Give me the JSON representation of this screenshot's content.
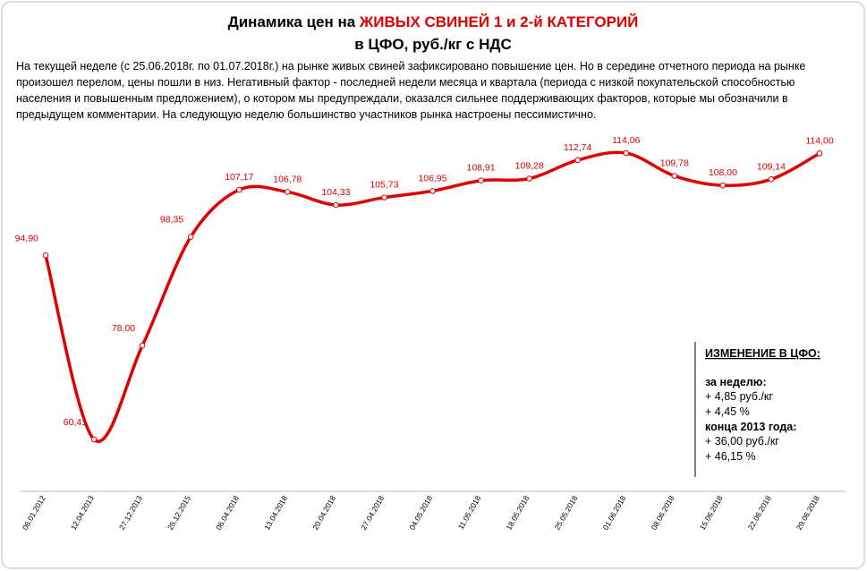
{
  "chart_data": {
    "type": "line",
    "title": {
      "lead": "Динамика цен на ",
      "highlight": "ЖИВЫХ СВИНЕЙ 1 и 2-й КАТЕГОРИЙ",
      "subtitle": "в ЦФО, руб./кг с НДС"
    },
    "comment": "На текущей неделе (с 25.06.2018г. по 01.07.2018г.) на рынке живых свиней зафиксировано повышение цен. Но в середине отчетного периода на рынке произошел перелом, цены пошли в низ. Негативный фактор - последней недели месяца и квартала (периода с низкой покупательской способностью населения и повышенным предложением), о котором мы предупреждали, оказался сильнее поддерживающих факторов, которые мы обозначили в предыдущем комментарии. На следующую неделю большинство участников рынка настроены пессимистично.",
    "categories": [
      "06.01.2012",
      "12.04.2013",
      "27.12.2013",
      "25.12.2015",
      "06.04.2018",
      "13.04.2018",
      "20.04.2018",
      "27.04.2018",
      "04.05.2018",
      "11.05.2018",
      "18.05.2018",
      "25.05.2018",
      "01.06.2018",
      "08.06.2018",
      "15.06.2018",
      "22.06.2018",
      "29.06.2018"
    ],
    "values": [
      94.9,
      60.41,
      78.0,
      98.35,
      107.17,
      106.78,
      104.33,
      105.73,
      106.95,
      108.91,
      109.28,
      112.74,
      114.06,
      109.78,
      108.0,
      109.14,
      114.0
    ],
    "value_labels": [
      "94,90",
      "60,41",
      "78,00",
      "98,35",
      "107,17",
      "106,78",
      "104,33",
      "105,73",
      "106,95",
      "108,91",
      "109,28",
      "112,74",
      "114,06",
      "109,78",
      "108,00",
      "109,14",
      "114,00"
    ],
    "color": "#e00000",
    "panel": {
      "heading": "ИЗМЕНЕНИЕ В ЦФО:",
      "week_label": "за неделю:",
      "week": [
        "+ 4,85 руб./кг",
        "+ 4,45 %"
      ],
      "since_label": "конца 2013 года:",
      "since": [
        "+ 36,00 руб./кг",
        "+ 46,15 %"
      ]
    }
  }
}
